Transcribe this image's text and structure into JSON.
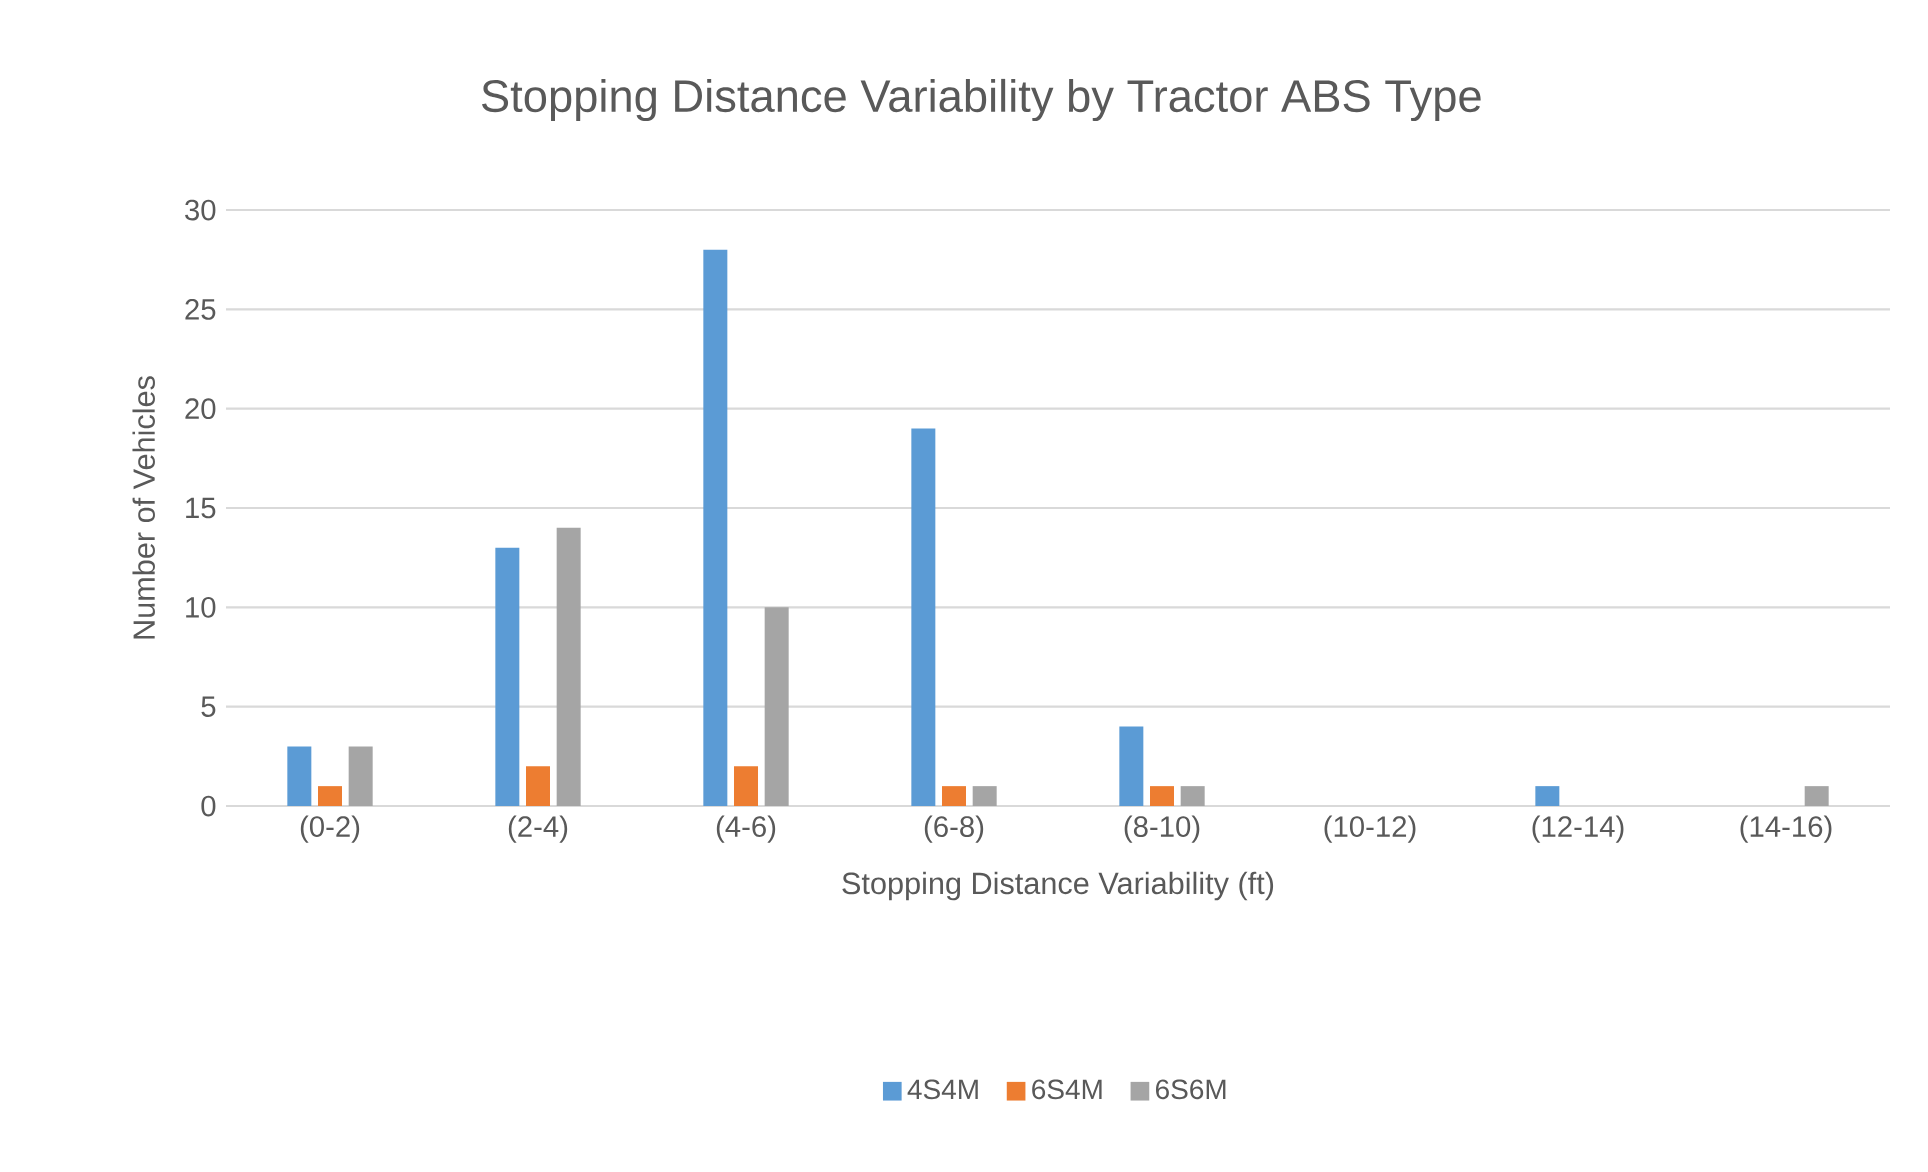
{
  "chart_data": {
    "type": "bar",
    "title": "Stopping Distance Variability by Tractor ABS Type",
    "xlabel": "Stopping Distance Variability (ft)",
    "ylabel": "Number of Vehicles",
    "categories": [
      "(0-2)",
      "(2-4)",
      "(4-6)",
      "(6-8)",
      "(8-10)",
      "(10-12)",
      "(12-14)",
      "(14-16)"
    ],
    "series": [
      {
        "name": "4S4M",
        "color": "#5b9bd5",
        "values": [
          3,
          13,
          28,
          19,
          4,
          0,
          1,
          0
        ]
      },
      {
        "name": "6S4M",
        "color": "#ed7d31",
        "values": [
          1,
          2,
          2,
          1,
          1,
          0,
          0,
          0
        ]
      },
      {
        "name": "6S6M",
        "color": "#a5a5a5",
        "values": [
          3,
          14,
          10,
          1,
          1,
          0,
          0,
          1
        ]
      }
    ],
    "ylim": [
      0,
      30
    ],
    "yticks": [
      0,
      5,
      10,
      15,
      20,
      25,
      30
    ],
    "grid": "y",
    "legend": "bottom"
  }
}
